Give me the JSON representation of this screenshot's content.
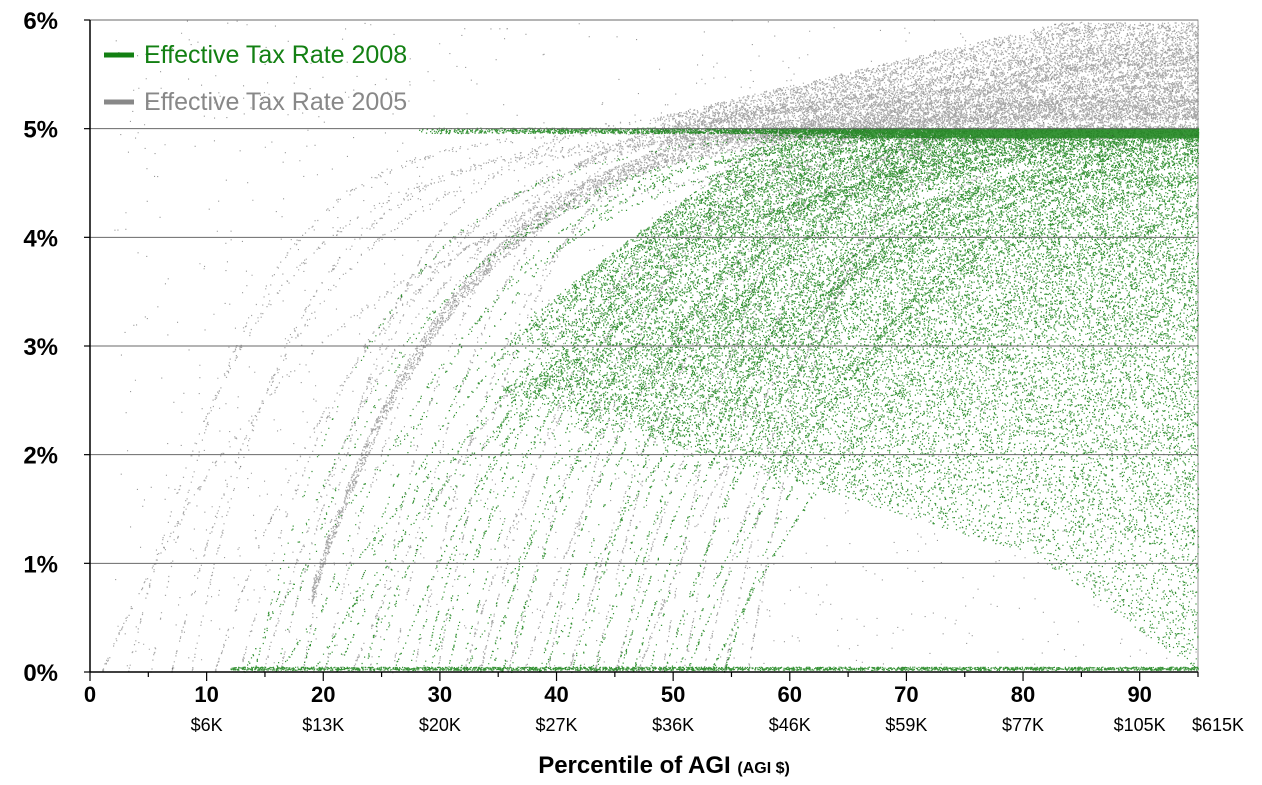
{
  "chart_data": {
    "type": "scatter",
    "title": "",
    "xlabel": "Percentile of AGI",
    "xlabel_suffix": "(AGI $)",
    "ylabel": "",
    "xlim": [
      0,
      95
    ],
    "ylim": [
      0,
      6
    ],
    "grid": "horizontal",
    "legend_position": "top-left",
    "y_ticks": [
      {
        "value": 0,
        "label": "0%"
      },
      {
        "value": 1,
        "label": "1%"
      },
      {
        "value": 2,
        "label": "2%"
      },
      {
        "value": 3,
        "label": "3%"
      },
      {
        "value": 4,
        "label": "4%"
      },
      {
        "value": 5,
        "label": "5%"
      },
      {
        "value": 6,
        "label": "6%"
      }
    ],
    "x_ticks": [
      {
        "value": 0,
        "label": "0"
      },
      {
        "value": 10,
        "label": "10"
      },
      {
        "value": 20,
        "label": "20"
      },
      {
        "value": 30,
        "label": "30"
      },
      {
        "value": 40,
        "label": "40"
      },
      {
        "value": 50,
        "label": "50"
      },
      {
        "value": 60,
        "label": "60"
      },
      {
        "value": 70,
        "label": "70"
      },
      {
        "value": 80,
        "label": "80"
      },
      {
        "value": 90,
        "label": "90"
      }
    ],
    "agi_ticks": [
      {
        "value": 10,
        "label": "$6K"
      },
      {
        "value": 20,
        "label": "$13K"
      },
      {
        "value": 30,
        "label": "$20K"
      },
      {
        "value": 40,
        "label": "$27K"
      },
      {
        "value": 50,
        "label": "$36K"
      },
      {
        "value": 60,
        "label": "$46K"
      },
      {
        "value": 70,
        "label": "$59K"
      },
      {
        "value": 80,
        "label": "$77K"
      },
      {
        "value": 90,
        "label": "$105K"
      },
      {
        "value": 98,
        "label": "$615K"
      }
    ],
    "series": [
      {
        "name": "Effective Tax Rate 2008",
        "color": "#138013",
        "approx_points": [
          [
            12,
            0
          ],
          [
            15,
            0.3
          ],
          [
            20,
            1.6
          ],
          [
            30,
            3.4
          ],
          [
            40,
            4.3
          ],
          [
            50,
            4.7
          ],
          [
            60,
            4.5
          ],
          [
            70,
            4.4
          ],
          [
            80,
            4.6
          ],
          [
            90,
            4.8
          ],
          [
            95,
            4.9
          ]
        ]
      },
      {
        "name": "Effective Tax Rate 2005",
        "color": "#888888",
        "approx_points": [
          [
            2,
            0
          ],
          [
            10,
            0.4
          ],
          [
            20,
            2.2
          ],
          [
            30,
            3.7
          ],
          [
            40,
            4.4
          ],
          [
            50,
            4.9
          ],
          [
            60,
            5.1
          ],
          [
            70,
            5.2
          ],
          [
            80,
            5.3
          ],
          [
            90,
            5.4
          ],
          [
            95,
            5.6
          ]
        ]
      }
    ]
  }
}
